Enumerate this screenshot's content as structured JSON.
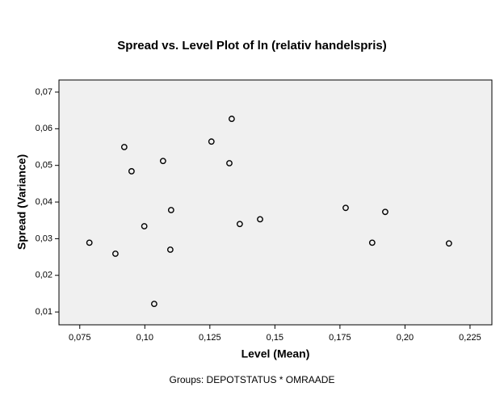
{
  "chart_data": {
    "type": "scatter",
    "title": "Spread vs. Level Plot of ln (relativ handelspris)",
    "x_label": "Level (Mean)",
    "y_label": "Spread (Variance)",
    "caption": "Groups: DEPOTSTATUS * OMRAADE",
    "x": [
      0.0787,
      0.0887,
      0.0921,
      0.0949,
      0.0998,
      0.1036,
      0.107,
      0.1098,
      0.1101,
      0.1256,
      0.1325,
      0.1334,
      0.1365,
      0.1443,
      0.1772,
      0.1874,
      0.1924,
      0.2169
    ],
    "values": [
      0.0289,
      0.0259,
      0.055,
      0.0484,
      0.0334,
      0.0122,
      0.0512,
      0.027,
      0.0378,
      0.0565,
      0.0506,
      0.0627,
      0.034,
      0.0353,
      0.0384,
      0.0289,
      0.0373,
      0.0287
    ],
    "color": "#000000",
    "plot_background": "#f0f0f0",
    "xlim": [
      0.067,
      0.2334
    ],
    "ylim": [
      0.0065,
      0.0733
    ],
    "xticks": [
      {
        "value": 0.075,
        "label": "0,075"
      },
      {
        "value": 0.1,
        "label": "0,10"
      },
      {
        "value": 0.125,
        "label": "0,125"
      },
      {
        "value": 0.15,
        "label": "0,15"
      },
      {
        "value": 0.175,
        "label": "0,175"
      },
      {
        "value": 0.2,
        "label": "0,20"
      },
      {
        "value": 0.225,
        "label": "0,225"
      }
    ],
    "yticks": [
      {
        "value": 0.01,
        "label": "0,01"
      },
      {
        "value": 0.02,
        "label": "0,02"
      },
      {
        "value": 0.03,
        "label": "0,03"
      },
      {
        "value": 0.04,
        "label": "0,04"
      },
      {
        "value": 0.05,
        "label": "0,05"
      },
      {
        "value": 0.06,
        "label": "0,06"
      },
      {
        "value": 0.07,
        "label": "0,07"
      }
    ]
  }
}
